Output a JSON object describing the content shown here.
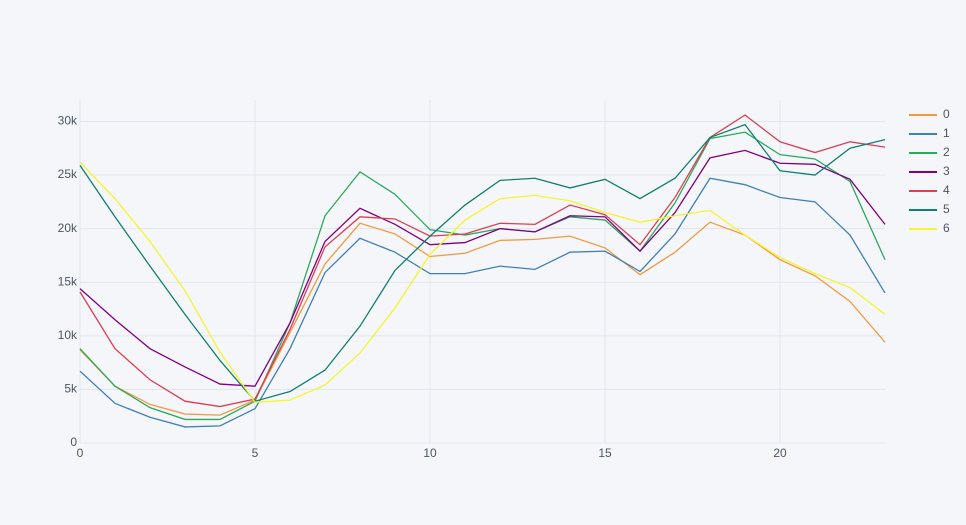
{
  "chart_data": {
    "type": "line",
    "x": [
      0,
      1,
      2,
      3,
      4,
      5,
      6,
      7,
      8,
      9,
      10,
      11,
      12,
      13,
      14,
      15,
      16,
      17,
      18,
      19,
      20,
      21,
      22,
      23
    ],
    "series": [
      {
        "name": "0",
        "color": "#f39a3f",
        "values": [
          8700,
          5300,
          3600,
          2700,
          2600,
          4000,
          10300,
          16700,
          20500,
          19500,
          17400,
          17700,
          18900,
          19000,
          19300,
          18200,
          15700,
          17800,
          20600,
          19400,
          17100,
          15600,
          13200,
          9400
        ]
      },
      {
        "name": "1",
        "color": "#3f80b9",
        "values": [
          6700,
          3700,
          2400,
          1500,
          1600,
          3200,
          8800,
          15900,
          19100,
          17800,
          15800,
          15800,
          16500,
          16200,
          17800,
          17900,
          16000,
          19500,
          24700,
          24100,
          22900,
          22500,
          19400,
          14000
        ]
      },
      {
        "name": "2",
        "color": "#2ea85d",
        "values": [
          8800,
          5300,
          3300,
          2200,
          2200,
          3900,
          11200,
          21200,
          25300,
          23200,
          19900,
          19400,
          20000,
          19700,
          21100,
          20800,
          17900,
          22400,
          28400,
          29000,
          26900,
          26500,
          24400,
          17100
        ]
      },
      {
        "name": "3",
        "color": "#800080",
        "values": [
          14400,
          11500,
          8800,
          7100,
          5500,
          5300,
          11200,
          18800,
          21900,
          20400,
          18500,
          18700,
          20000,
          19700,
          21200,
          21100,
          17900,
          21500,
          26600,
          27300,
          26100,
          26000,
          24600,
          20400
        ]
      },
      {
        "name": "4",
        "color": "#db4052",
        "values": [
          14100,
          8800,
          5900,
          3900,
          3400,
          4100,
          10600,
          18300,
          21100,
          20900,
          19300,
          19500,
          20500,
          20400,
          22200,
          21300,
          18500,
          22900,
          28500,
          30600,
          28100,
          27100,
          28100,
          27600
        ]
      },
      {
        "name": "5",
        "color": "#108070",
        "values": [
          25900,
          21100,
          16500,
          12000,
          7700,
          3900,
          4800,
          6800,
          10900,
          16100,
          19300,
          22200,
          24500,
          24700,
          23800,
          24600,
          22800,
          24700,
          28500,
          29700,
          25400,
          25000,
          27500,
          28300
        ]
      },
      {
        "name": "6",
        "color": "#f5f52a",
        "values": [
          26200,
          22800,
          18800,
          14200,
          8500,
          3800,
          4000,
          5400,
          8400,
          12600,
          17600,
          20800,
          22800,
          23100,
          22600,
          21500,
          20600,
          21200,
          21700,
          19400,
          17300,
          15800,
          14500,
          12000
        ]
      }
    ],
    "xlim": [
      0,
      23
    ],
    "xticks": [
      0,
      5,
      10,
      15,
      20
    ],
    "ylim": [
      0,
      32000
    ],
    "yticks": [
      0,
      {
        "value": 5000,
        "label": "5k"
      },
      {
        "value": 10000,
        "label": "10k"
      },
      {
        "value": 15000,
        "label": "15k"
      },
      {
        "value": 20000,
        "label": "20k"
      },
      {
        "value": 25000,
        "label": "25k"
      },
      {
        "value": 30000,
        "label": "30k"
      }
    ],
    "grid": true,
    "legend": "right"
  }
}
